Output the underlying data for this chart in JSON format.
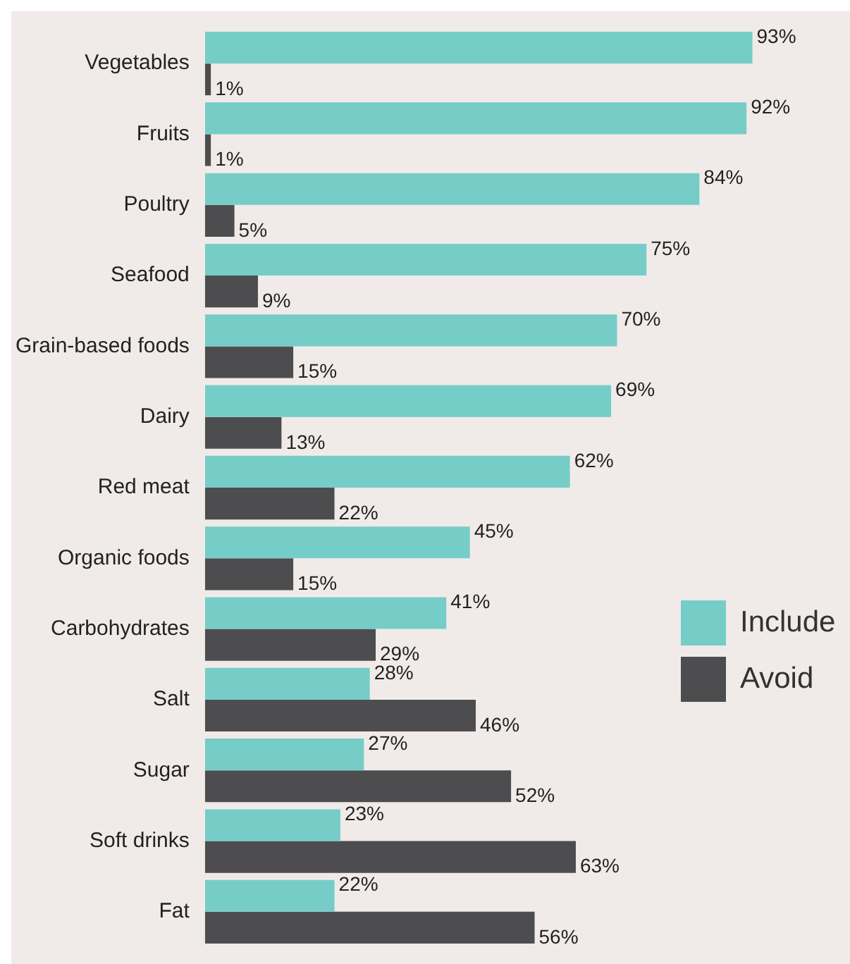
{
  "chart_data": {
    "type": "bar",
    "orientation": "horizontal",
    "categories": [
      "Vegetables",
      "Fruits",
      "Poultry",
      "Seafood",
      "Grain-based foods",
      "Dairy",
      "Red meat",
      "Organic foods",
      "Carbohydrates",
      "Salt",
      "Sugar",
      "Soft drinks",
      "Fat"
    ],
    "series": [
      {
        "name": "Include",
        "color": "#76cdc8",
        "values": [
          93,
          92,
          84,
          75,
          70,
          69,
          62,
          45,
          41,
          28,
          27,
          23,
          22
        ],
        "value_labels": [
          "93%",
          "92%",
          "84%",
          "75%",
          "70%",
          "69%",
          "62%",
          "45%",
          "41%",
          "28%",
          "27%",
          "23%",
          "22%"
        ]
      },
      {
        "name": "Avoid",
        "color": "#4d4d4f",
        "values": [
          1,
          1,
          5,
          9,
          15,
          13,
          22,
          15,
          29,
          46,
          52,
          63,
          56
        ],
        "value_labels": [
          "1%",
          "1%",
          "5%",
          "9%",
          "15%",
          "13%",
          "22%",
          "15%",
          "29%",
          "46%",
          "52%",
          "63%",
          "56%"
        ]
      }
    ],
    "legend": "right"
  }
}
